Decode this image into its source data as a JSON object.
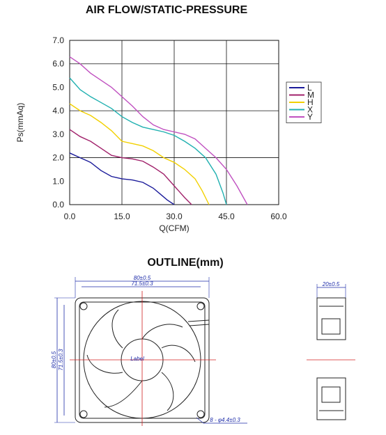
{
  "header": {
    "title": "AIR FLOW/STATIC-PRESSURE"
  },
  "outline": {
    "title": "OUTLINE(mm)",
    "dims": {
      "outer_width": "80±0.5",
      "hole_pitch": "71.5±0.3",
      "outer_height": "80±0.5",
      "hole_pitch_v": "71.5±0.3",
      "depth": "20±0.5",
      "hole_spec": "8 - φ4.4±0.3",
      "label": "Label"
    }
  },
  "chart_data": {
    "type": "line",
    "title": "AIR FLOW/STATIC-PRESSURE",
    "xlabel": "Q(CFM)",
    "ylabel": "Ps(mmAq)",
    "xlim": [
      0,
      60
    ],
    "ylim": [
      0,
      7
    ],
    "x_ticks": [
      "0.0",
      "15.0",
      "30.0",
      "45.0",
      "60.0"
    ],
    "y_ticks": [
      "0.0",
      "1.0",
      "2.0",
      "3.0",
      "4.0",
      "5.0",
      "6.0",
      "7.0"
    ],
    "grid": true,
    "legend_position": "right",
    "series": [
      {
        "name": "L",
        "color": "#1a1a9a",
        "points": [
          [
            0,
            2.2
          ],
          [
            3,
            2.0
          ],
          [
            6,
            1.8
          ],
          [
            9,
            1.45
          ],
          [
            12,
            1.2
          ],
          [
            15,
            1.1
          ],
          [
            18,
            1.05
          ],
          [
            21,
            0.95
          ],
          [
            24,
            0.7
          ],
          [
            26,
            0.45
          ],
          [
            28,
            0.2
          ],
          [
            30,
            0.0
          ]
        ]
      },
      {
        "name": "M",
        "color": "#a0206a",
        "points": [
          [
            0,
            3.2
          ],
          [
            3,
            2.9
          ],
          [
            6,
            2.7
          ],
          [
            9,
            2.4
          ],
          [
            12,
            2.1
          ],
          [
            15,
            2.0
          ],
          [
            18,
            1.95
          ],
          [
            21,
            1.85
          ],
          [
            24,
            1.6
          ],
          [
            27,
            1.3
          ],
          [
            30,
            0.8
          ],
          [
            33,
            0.3
          ],
          [
            35,
            0.0
          ]
        ]
      },
      {
        "name": "H",
        "color": "#f2d000",
        "points": [
          [
            0,
            4.3
          ],
          [
            3,
            4.0
          ],
          [
            6,
            3.8
          ],
          [
            9,
            3.5
          ],
          [
            12,
            3.15
          ],
          [
            15,
            2.7
          ],
          [
            18,
            2.6
          ],
          [
            21,
            2.5
          ],
          [
            24,
            2.3
          ],
          [
            27,
            2.0
          ],
          [
            30,
            1.8
          ],
          [
            33,
            1.5
          ],
          [
            36,
            1.1
          ],
          [
            38,
            0.6
          ],
          [
            40,
            0.0
          ]
        ]
      },
      {
        "name": "X",
        "color": "#20b0b0",
        "points": [
          [
            0,
            5.4
          ],
          [
            3,
            4.9
          ],
          [
            6,
            4.6
          ],
          [
            9,
            4.35
          ],
          [
            12,
            4.1
          ],
          [
            15,
            3.75
          ],
          [
            18,
            3.5
          ],
          [
            21,
            3.3
          ],
          [
            24,
            3.2
          ],
          [
            27,
            3.1
          ],
          [
            30,
            2.95
          ],
          [
            33,
            2.7
          ],
          [
            36,
            2.4
          ],
          [
            39,
            2.0
          ],
          [
            42,
            1.3
          ],
          [
            44,
            0.5
          ],
          [
            45,
            0.0
          ]
        ]
      },
      {
        "name": "Y",
        "color": "#c050c0",
        "points": [
          [
            0,
            6.3
          ],
          [
            3,
            6.0
          ],
          [
            6,
            5.6
          ],
          [
            9,
            5.3
          ],
          [
            12,
            5.0
          ],
          [
            15,
            4.6
          ],
          [
            18,
            4.2
          ],
          [
            21,
            3.75
          ],
          [
            24,
            3.4
          ],
          [
            27,
            3.2
          ],
          [
            30,
            3.1
          ],
          [
            33,
            3.0
          ],
          [
            36,
            2.8
          ],
          [
            39,
            2.4
          ],
          [
            42,
            2.0
          ],
          [
            45,
            1.5
          ],
          [
            48,
            0.8
          ],
          [
            51,
            0.0
          ]
        ]
      }
    ]
  }
}
